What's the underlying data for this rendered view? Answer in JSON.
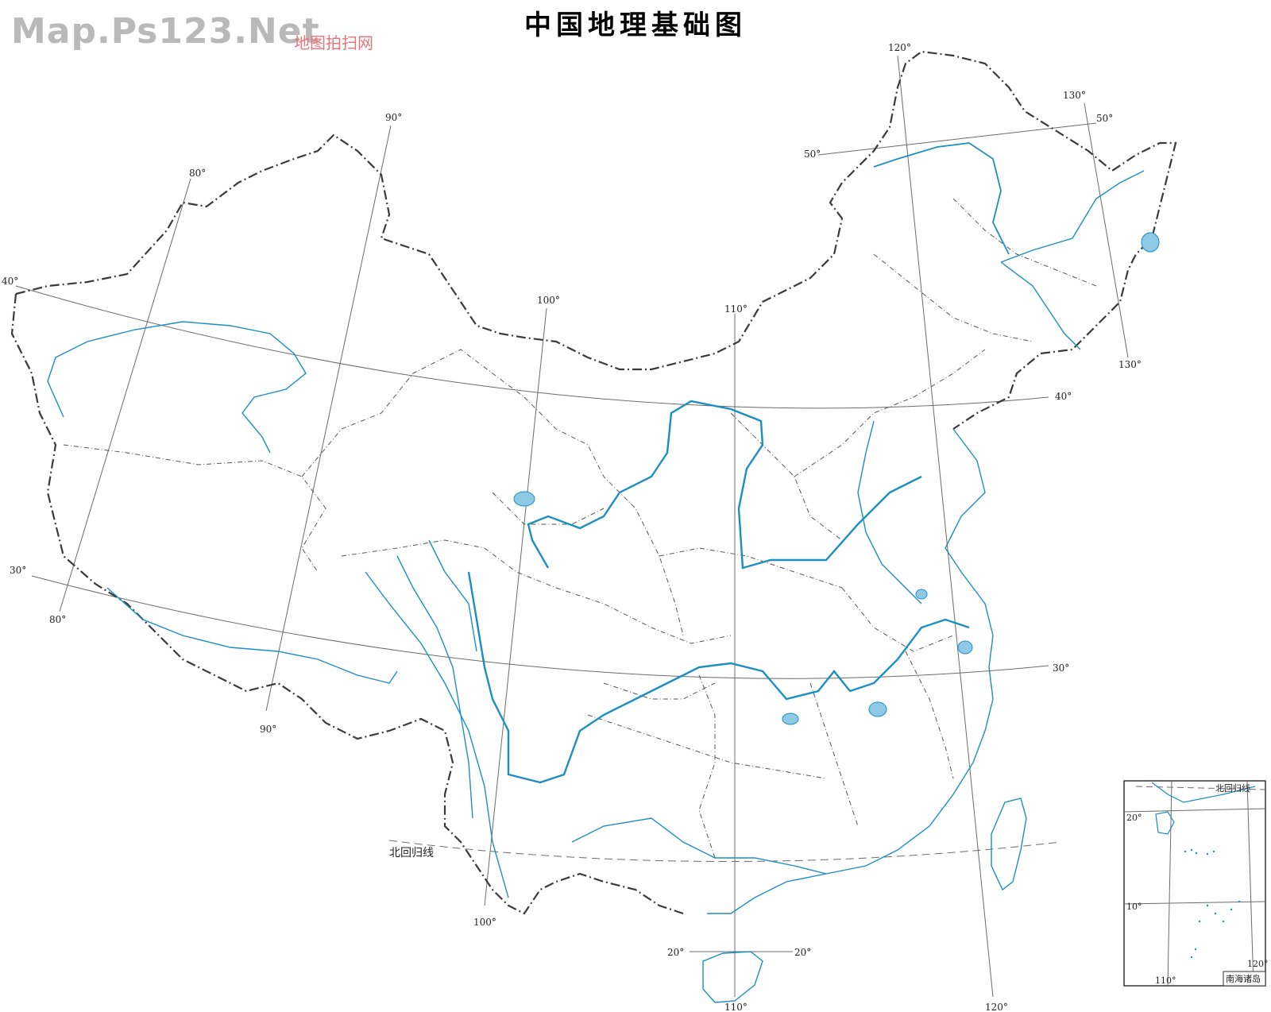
{
  "title": "中国地理基础图",
  "watermark": {
    "main": "Map.Ps123.Net",
    "sub": "地图拍扫网"
  },
  "colors": {
    "water": "#1b8fc2",
    "lake": "#8ecae6",
    "border": "#3a3a3a",
    "grid": "#6b6b6b"
  },
  "graticule": {
    "meridian_labels": [
      "80°",
      "90°",
      "100°",
      "110°",
      "120°",
      "130°"
    ],
    "parallel_labels": [
      "20°",
      "30°",
      "40°",
      "50°"
    ]
  },
  "tropic_label": "北回归线",
  "inset": {
    "title": "南海诸岛",
    "tropic_label": "北回归线",
    "labels": [
      "20°",
      "10°",
      "110°",
      "120°"
    ]
  }
}
